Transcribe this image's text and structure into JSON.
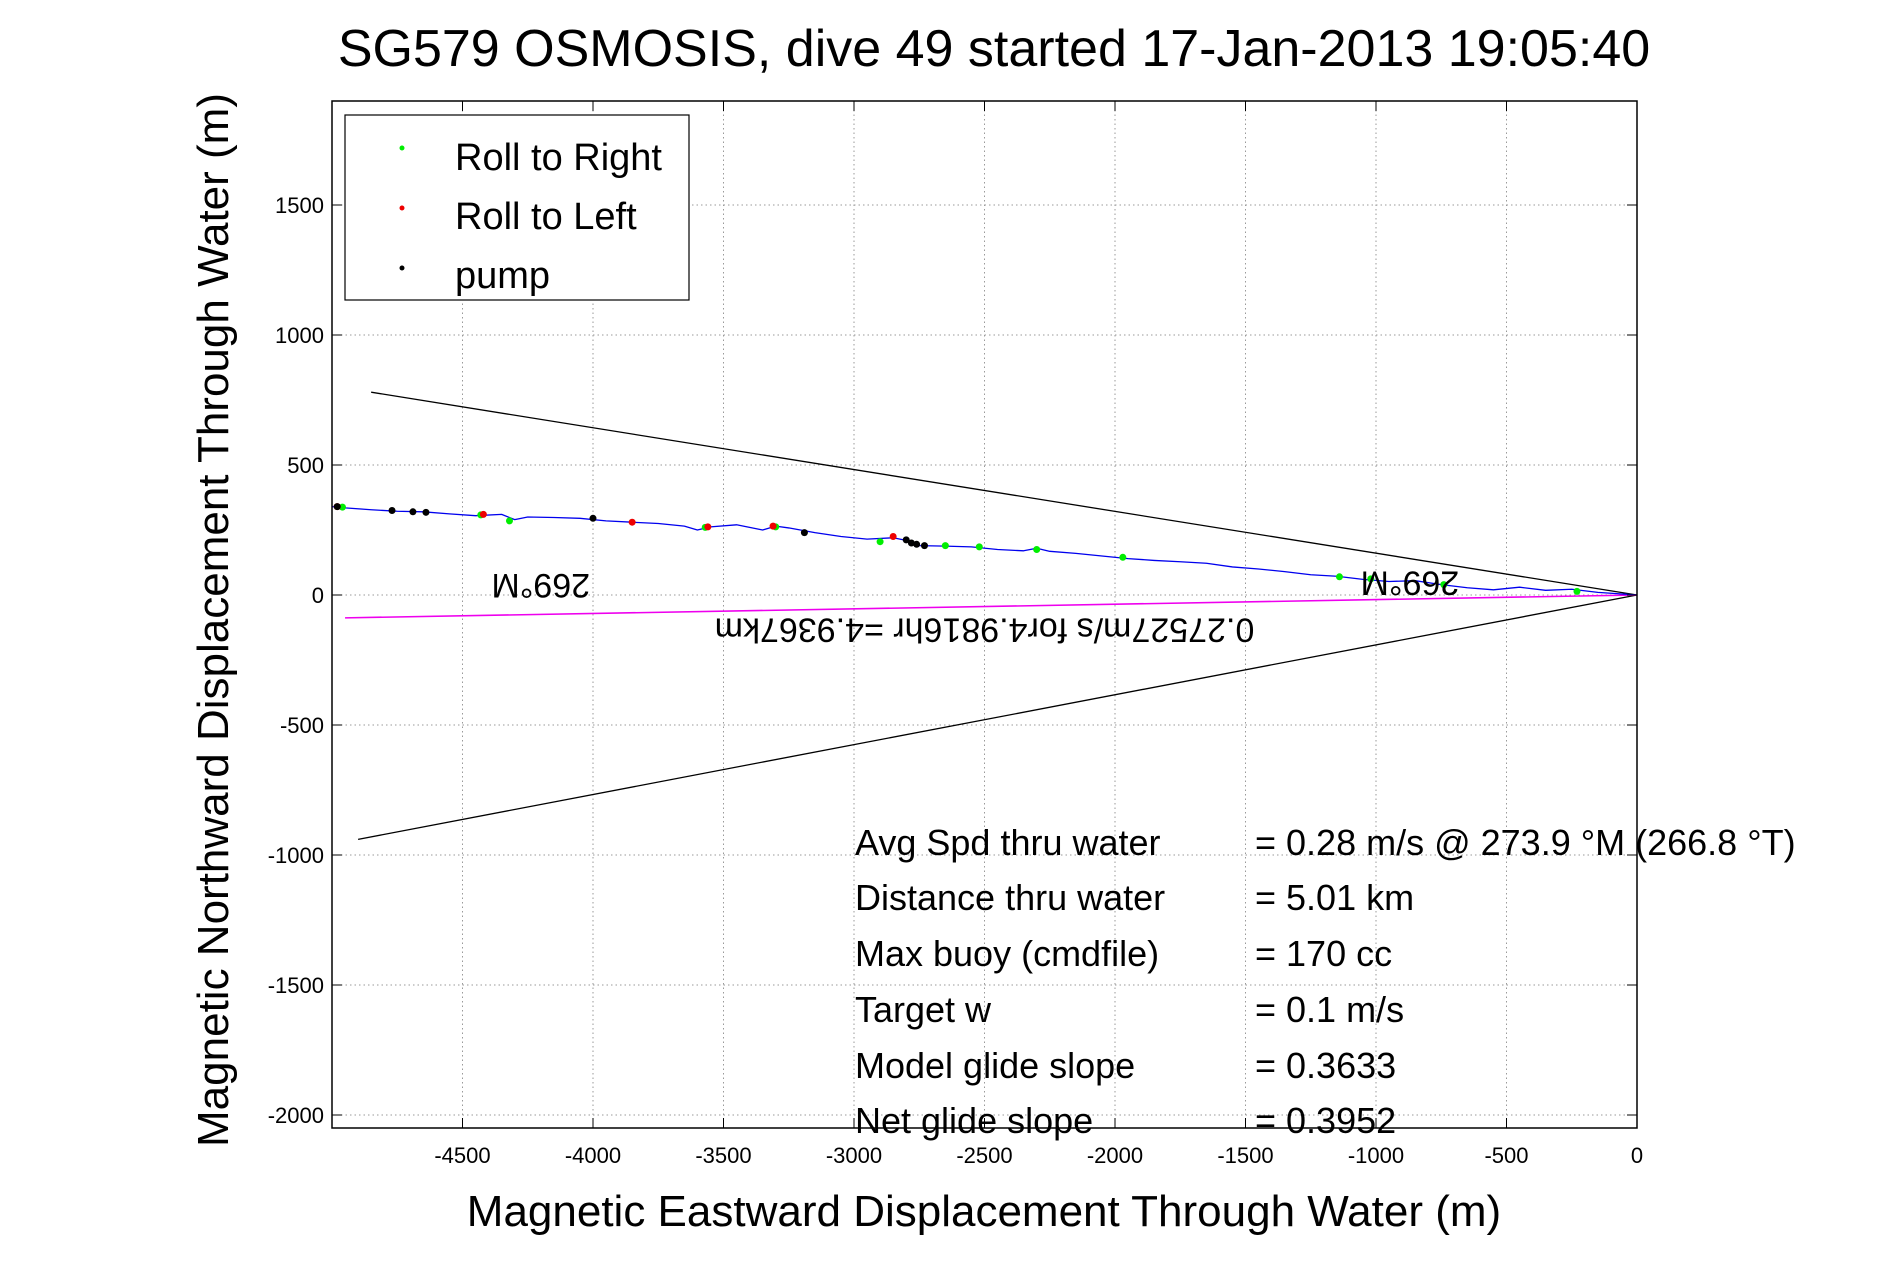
{
  "chart_data": {
    "type": "line",
    "title": "SG579 OSMOSIS, dive 49 started 17-Jan-2013 19:05:40",
    "xlabel": "Magnetic Eastward Displacement Through Water (m)",
    "ylabel": "Magnetic Northward Displacement Through Water (m)",
    "xlim": [
      -5000,
      0
    ],
    "ylim": [
      -2050,
      1900
    ],
    "xticks": [
      -4500,
      -4000,
      -3500,
      -3000,
      -2500,
      -2000,
      -1500,
      -1000,
      -500,
      0
    ],
    "yticks": [
      -2000,
      -1500,
      -1000,
      -500,
      0,
      500,
      1000,
      1500
    ],
    "grid": true,
    "legend_position": "top-left",
    "legend": [
      {
        "label": "Roll to Right",
        "color": "#00ee00"
      },
      {
        "label": "Roll to Left",
        "color": "#ee0000"
      },
      {
        "label": "pump",
        "color": "#000000"
      }
    ],
    "track": {
      "color": "#0000ee",
      "x": [
        0,
        -150,
        -250,
        -350,
        -450,
        -550,
        -650,
        -750,
        -850,
        -950,
        -1050,
        -1150,
        -1250,
        -1350,
        -1450,
        -1550,
        -1650,
        -1750,
        -1850,
        -1950,
        -2050,
        -2150,
        -2250,
        -2300,
        -2350,
        -2450,
        -2550,
        -2650,
        -2750,
        -2800,
        -2850,
        -2950,
        -3050,
        -3150,
        -3250,
        -3300,
        -3350,
        -3450,
        -3550,
        -3600,
        -3650,
        -3750,
        -3850,
        -3950,
        -4050,
        -4150,
        -4250,
        -4300,
        -4350,
        -4450,
        -4550,
        -4650,
        -4750,
        -4850,
        -4950,
        -5000
      ],
      "y": [
        0,
        10,
        22,
        18,
        30,
        20,
        28,
        40,
        55,
        52,
        60,
        72,
        78,
        90,
        100,
        108,
        122,
        128,
        133,
        140,
        150,
        160,
        168,
        180,
        170,
        175,
        185,
        188,
        190,
        210,
        220,
        215,
        225,
        240,
        258,
        265,
        250,
        270,
        262,
        250,
        265,
        275,
        280,
        285,
        295,
        298,
        300,
        290,
        310,
        305,
        312,
        320,
        322,
        328,
        335,
        340
      ]
    },
    "markers": {
      "roll_right": {
        "x": [
          -230,
          -740,
          -1020,
          -1140,
          -1970,
          -2300,
          -2520,
          -2650,
          -2900,
          -3300,
          -3570,
          -4320,
          -4430,
          -4960
        ],
        "y": [
          14,
          40,
          62,
          70,
          145,
          175,
          185,
          190,
          205,
          262,
          260,
          285,
          308,
          338
        ]
      },
      "roll_left": {
        "x": [
          -2850,
          -3310,
          -3560,
          -3850,
          -4420,
          -4980
        ],
        "y": [
          225,
          265,
          262,
          280,
          310,
          340
        ]
      },
      "pump": {
        "x": [
          -2800,
          -2780,
          -2760,
          -2730,
          -3190,
          -4000,
          -4640,
          -4690,
          -4770,
          -4980
        ],
        "y": [
          212,
          200,
          195,
          190,
          240,
          295,
          318,
          320,
          325,
          340
        ]
      }
    },
    "heading_lines": {
      "color": "#000000",
      "segments": [
        {
          "x": [
            0,
            -4850
          ],
          "y": [
            0,
            780
          ]
        },
        {
          "x": [
            0,
            -4900
          ],
          "y": [
            0,
            -940
          ]
        }
      ]
    },
    "drift_line": {
      "color": "#ee00ee",
      "x": [
        0,
        -4950
      ],
      "y": [
        0,
        -88
      ]
    },
    "mirrored_labels": [
      {
        "text": "269°M",
        "x": -4200,
        "y": 80
      },
      {
        "text": "269°M",
        "x": -870,
        "y": 90
      },
      {
        "text": "0.27527m/s for4.9816hr =4.9367km",
        "x": -2500,
        "y": -90
      }
    ],
    "stats": [
      {
        "label": "Avg Spd thru water",
        "value": "=  0.28 m/s @ 273.9 °M (266.8 °T)"
      },
      {
        "label": "Distance thru water",
        "value": "=  5.01 km"
      },
      {
        "label": "Max buoy (cmdfile)",
        "value": "= 170 cc"
      },
      {
        "label": "Target w",
        "value": "= 0.1 m/s"
      },
      {
        "label": "Model glide slope",
        "value": "= 0.3633"
      },
      {
        "label": "Net glide slope",
        "value": "= 0.3952"
      }
    ]
  }
}
